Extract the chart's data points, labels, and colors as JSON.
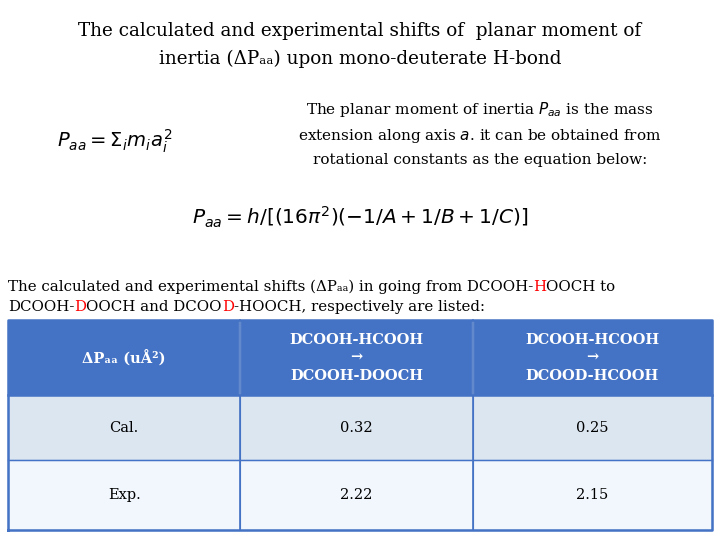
{
  "title_line1": "The calculated and experimental shifts of  planar moment of",
  "title_line2": "inertia (ΔPₐₐ) upon mono-deuterate H-bond",
  "bg_color": "#ffffff",
  "table_header_color": "#4472C4",
  "table_row1_color": "#dce6f1",
  "table_row2_color": "#f2f7fd",
  "table_border_color": "#4472C4",
  "text_color": "#000000",
  "table_header_text_color": "#ffffff",
  "col1_header": "ΔPₐₐ (uÅ²)",
  "col2_header_l1": "DCOOH-HCOOH",
  "col2_header_l2": "→",
  "col2_header_l3": "DCOOH-DOOCH",
  "col3_header_l1": "DCOOH-HCOOH",
  "col3_header_l2": "→",
  "col3_header_l3": "DCOOD-HCOOH",
  "row1_label": "Cal.",
  "row2_label": "Exp.",
  "row1_col2": "0.32",
  "row1_col3": "0.25",
  "row2_col2": "2.22",
  "row2_col3": "2.15"
}
